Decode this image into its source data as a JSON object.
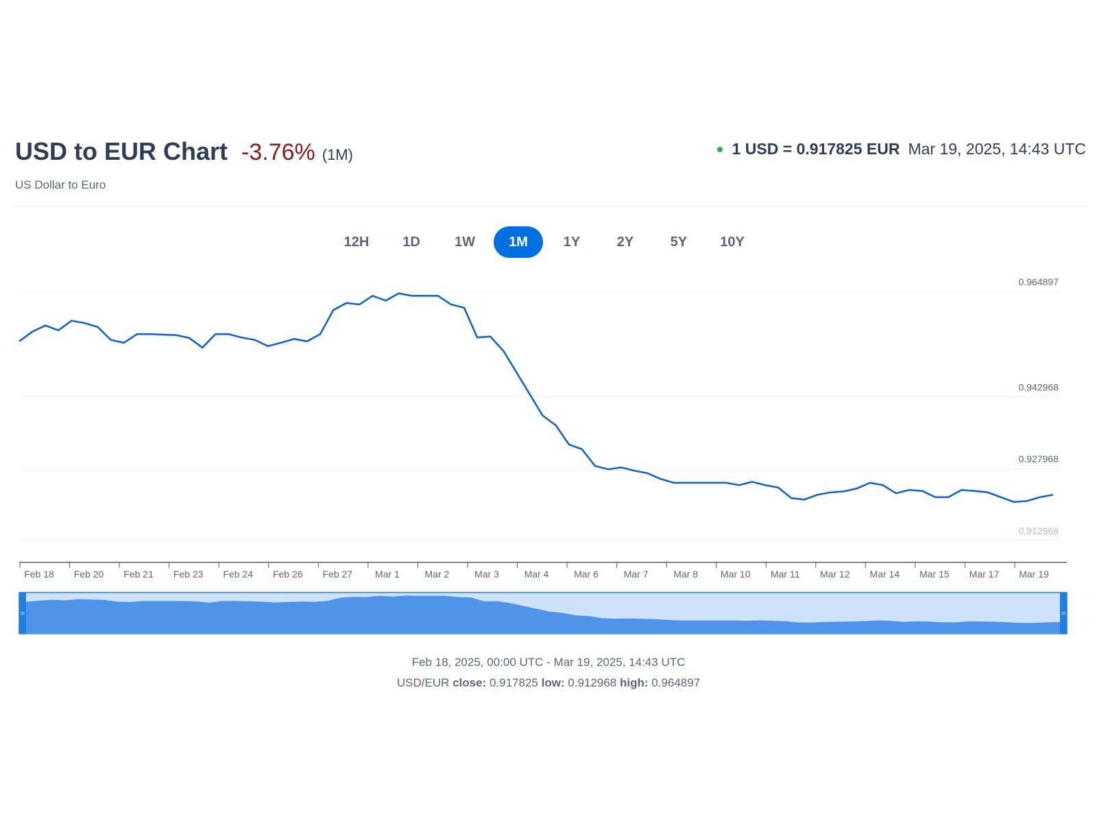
{
  "header": {
    "title": "USD to EUR Chart",
    "change": "-3.76%",
    "period": "(1M)",
    "subtitle": "US Dollar to Euro",
    "rate": "1 USD = 0.917825 EUR",
    "timestamp": "Mar 19, 2025, 14:43 UTC"
  },
  "ranges": [
    {
      "label": "12H",
      "active": false
    },
    {
      "label": "1D",
      "active": false
    },
    {
      "label": "1W",
      "active": false
    },
    {
      "label": "1M",
      "active": true
    },
    {
      "label": "1Y",
      "active": false
    },
    {
      "label": "2Y",
      "active": false
    },
    {
      "label": "5Y",
      "active": false
    },
    {
      "label": "10Y",
      "active": false
    }
  ],
  "colors": {
    "line": "#1565c0",
    "accent": "#0070e0",
    "negative": "#8b1a1a",
    "live_dot": "#2db24a",
    "navigator_fill": "#4f94e8",
    "navigator_bg": "#cfe2fb"
  },
  "footer": {
    "range": "Feb 18, 2025, 00:00 UTC - Mar 19, 2025, 14:43 UTC",
    "pair": "USD/EUR",
    "close_label": "close:",
    "close": "0.917825",
    "low_label": "low:",
    "low": "0.912968",
    "high_label": "high:",
    "high": "0.964897"
  },
  "chart_data": {
    "type": "line",
    "ylim": [
      0.912968,
      0.964897
    ],
    "y_ticks": [
      "0.964897",
      "0.942968",
      "0.927968",
      "0.912968"
    ],
    "x_ticks": [
      "Feb 18",
      "Feb 20",
      "Feb 21",
      "Feb 23",
      "Feb 24",
      "Feb 26",
      "Feb 27",
      "Mar 1",
      "Mar 2",
      "Mar 3",
      "Mar 4",
      "Mar 6",
      "Mar 7",
      "Mar 8",
      "Mar 10",
      "Mar 11",
      "Mar 12",
      "Mar 14",
      "Mar 15",
      "Mar 17",
      "Mar 19"
    ],
    "series": [
      {
        "values": [
          0.9545,
          0.9565,
          0.9578,
          0.9568,
          0.9588,
          0.9583,
          0.9575,
          0.9548,
          0.9542,
          0.956,
          0.956,
          0.9559,
          0.9558,
          0.9552,
          0.9532,
          0.956,
          0.956,
          0.9553,
          0.9548,
          0.9535,
          0.9542,
          0.955,
          0.9545,
          0.956,
          0.961,
          0.9625,
          0.9622,
          0.964,
          0.963,
          0.9645,
          0.964,
          0.964,
          0.964,
          0.9622,
          0.9615,
          0.9553,
          0.9555,
          0.9525,
          0.948,
          0.9435,
          0.939,
          0.937,
          0.933,
          0.932,
          0.9285,
          0.9278,
          0.9282,
          0.9275,
          0.927,
          0.9258,
          0.925,
          0.925,
          0.925,
          0.925,
          0.925,
          0.9245,
          0.9252,
          0.9245,
          0.924,
          0.9218,
          0.9215,
          0.9225,
          0.923,
          0.9232,
          0.9238,
          0.925,
          0.9245,
          0.9228,
          0.9235,
          0.9233,
          0.922,
          0.922,
          0.9235,
          0.9233,
          0.923,
          0.922,
          0.921,
          0.9212,
          0.922,
          0.9225
        ]
      }
    ]
  }
}
